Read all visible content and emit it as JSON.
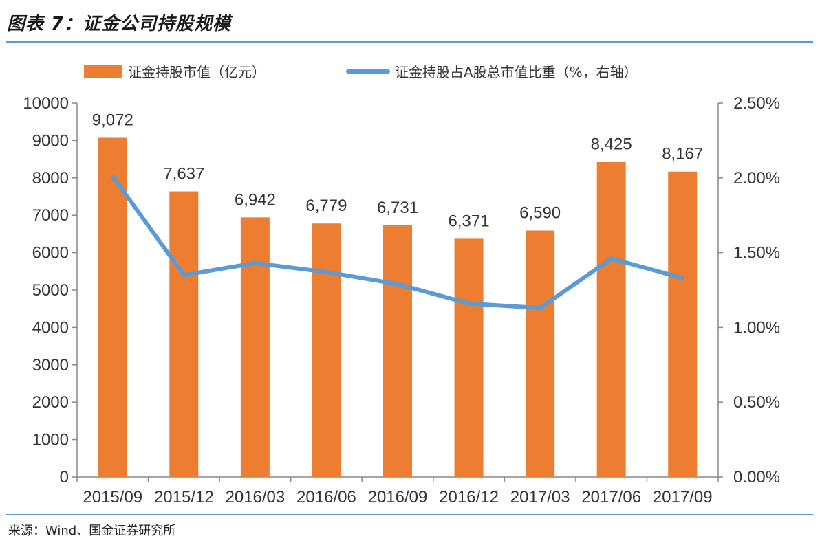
{
  "title": "图表 7：证金公司持股规模",
  "source": "来源：Wind、国金证券研究所",
  "colors": {
    "bar": "#ed7d31",
    "line": "#5b9bd5",
    "rule": "#5b9bd5",
    "axis": "#888888"
  },
  "chart_data": {
    "type": "bar",
    "categories": [
      "2015/09",
      "2015/12",
      "2016/03",
      "2016/06",
      "2016/09",
      "2016/12",
      "2017/03",
      "2017/06",
      "2017/09"
    ],
    "series": [
      {
        "name": "证金持股市值（亿元）",
        "type": "bar",
        "axis": "left",
        "values": [
          9072,
          7637,
          6942,
          6779,
          6731,
          6371,
          6590,
          8425,
          8167
        ],
        "labels": [
          "9,072",
          "7,637",
          "6,942",
          "6,779",
          "6,731",
          "6,371",
          "6,590",
          "8,425",
          "8,167"
        ]
      },
      {
        "name": "证金持股占A股总市值比重（%，右轴）",
        "type": "line",
        "axis": "right",
        "values": [
          2.01,
          1.35,
          1.43,
          1.37,
          1.29,
          1.16,
          1.13,
          1.46,
          1.33
        ]
      }
    ],
    "y_left": {
      "ylim": [
        0,
        10000
      ],
      "ticks": [
        "0",
        "1000",
        "2000",
        "3000",
        "4000",
        "5000",
        "6000",
        "7000",
        "8000",
        "9000",
        "10000"
      ]
    },
    "y_right": {
      "ylim": [
        0,
        2.5
      ],
      "ticks": [
        "0.00%",
        "0.50%",
        "1.00%",
        "1.50%",
        "2.00%",
        "2.50%"
      ]
    },
    "legend": "top",
    "grid": false
  }
}
